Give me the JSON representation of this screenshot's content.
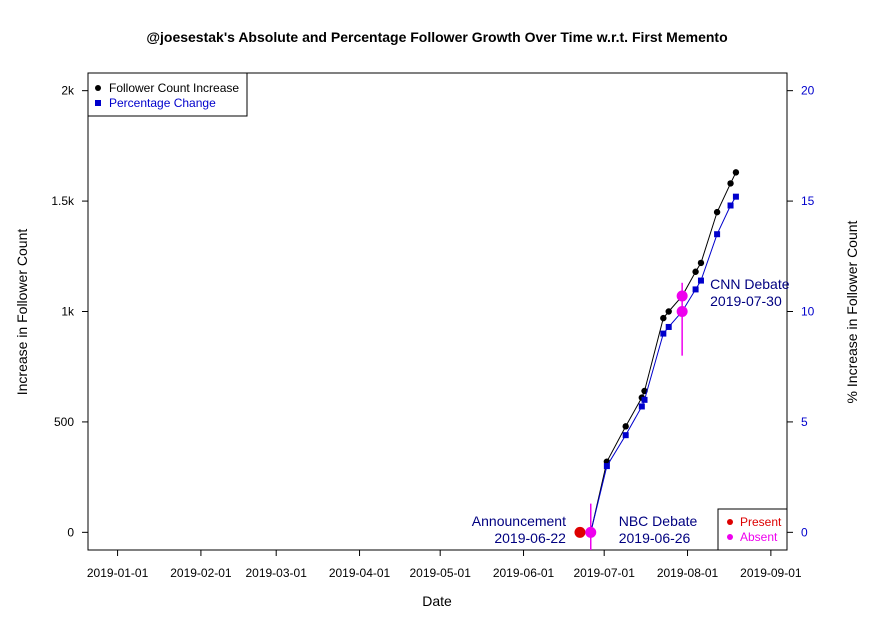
{
  "chart_data": {
    "type": "line",
    "title": "@joesestak's Absolute and Percentage Follower Growth Over Time w.r.t. First Memento",
    "xlabel": "Date",
    "ylabel": "Increase in Follower Count",
    "ylabel_right": "% Increase in Follower Count",
    "x_ticks": [
      "2019-01-01",
      "2019-02-01",
      "2019-03-01",
      "2019-04-01",
      "2019-05-01",
      "2019-06-01",
      "2019-07-01",
      "2019-08-01",
      "2019-09-01"
    ],
    "y_ticks": [
      {
        "value": 0,
        "label": "0"
      },
      {
        "value": 500,
        "label": "500"
      },
      {
        "value": 1000,
        "label": "1k"
      },
      {
        "value": 1500,
        "label": "1.5k"
      },
      {
        "value": 2000,
        "label": "2k"
      }
    ],
    "y_right_ticks": [
      {
        "value": 0,
        "label": "0"
      },
      {
        "value": 5,
        "label": "5"
      },
      {
        "value": 10,
        "label": "10"
      },
      {
        "value": 15,
        "label": "15"
      },
      {
        "value": 20,
        "label": "20"
      }
    ],
    "xlim": [
      "2018-12-21",
      "2019-09-07"
    ],
    "ylim": [
      -80,
      2080
    ],
    "ylim_right": [
      -0.8,
      20.8
    ],
    "series": [
      {
        "name": "Follower Count Increase",
        "axis": "left",
        "color": "#000000",
        "marker": "circle",
        "points": [
          {
            "x": "2019-06-22",
            "y": 0
          },
          {
            "x": "2019-06-26",
            "y": 0
          },
          {
            "x": "2019-07-02",
            "y": 320
          },
          {
            "x": "2019-07-09",
            "y": 480
          },
          {
            "x": "2019-07-15",
            "y": 610
          },
          {
            "x": "2019-07-16",
            "y": 640
          },
          {
            "x": "2019-07-23",
            "y": 970
          },
          {
            "x": "2019-07-25",
            "y": 1000
          },
          {
            "x": "2019-07-30",
            "y": 1070
          },
          {
            "x": "2019-08-04",
            "y": 1180
          },
          {
            "x": "2019-08-06",
            "y": 1220
          },
          {
            "x": "2019-08-12",
            "y": 1450
          },
          {
            "x": "2019-08-17",
            "y": 1580
          },
          {
            "x": "2019-08-19",
            "y": 1630
          }
        ]
      },
      {
        "name": "Percentage Change",
        "axis": "right",
        "color": "#0000cc",
        "marker": "square",
        "points": [
          {
            "x": "2019-06-22",
            "y": 0
          },
          {
            "x": "2019-06-26",
            "y": 0
          },
          {
            "x": "2019-07-02",
            "y": 3.0
          },
          {
            "x": "2019-07-09",
            "y": 4.4
          },
          {
            "x": "2019-07-15",
            "y": 5.7
          },
          {
            "x": "2019-07-16",
            "y": 6.0
          },
          {
            "x": "2019-07-23",
            "y": 9.0
          },
          {
            "x": "2019-07-25",
            "y": 9.3
          },
          {
            "x": "2019-07-30",
            "y": 10.0
          },
          {
            "x": "2019-08-04",
            "y": 11.0
          },
          {
            "x": "2019-08-06",
            "y": 11.4
          },
          {
            "x": "2019-08-12",
            "y": 13.5
          },
          {
            "x": "2019-08-17",
            "y": 14.8
          },
          {
            "x": "2019-08-19",
            "y": 15.2
          }
        ]
      }
    ],
    "status_points": [
      {
        "x": "2019-06-22",
        "y": 0,
        "status": "Present"
      },
      {
        "x": "2019-06-26",
        "y": 0,
        "status": "Absent"
      },
      {
        "x": "2019-07-30",
        "y": 1070,
        "status": "Absent"
      },
      {
        "x": "2019-07-30",
        "y": 1000,
        "status": "Absent"
      }
    ],
    "event_lines": [
      {
        "x": "2019-06-26",
        "y_from": -80,
        "y_to": 130
      },
      {
        "x": "2019-07-30",
        "y_from": 800,
        "y_to": 1130
      }
    ],
    "annotations": [
      {
        "id": "announcement",
        "lines": [
          "Announcement",
          "2019-06-22"
        ],
        "x": "2019-06-22",
        "side": "left"
      },
      {
        "id": "nbc",
        "lines": [
          "NBC Debate",
          "2019-06-26"
        ],
        "x": "2019-06-26",
        "side": "right"
      },
      {
        "id": "cnn",
        "lines": [
          "CNN Debate",
          "2019-07-30"
        ],
        "x": "2019-07-30",
        "side": "right"
      }
    ],
    "annotation_color": "#000080",
    "legend": {
      "placement": "top-left",
      "items": [
        {
          "label": "Follower Count Increase",
          "color": "#000000",
          "marker": "circle"
        },
        {
          "label": "Percentage Change",
          "color": "#0000cc",
          "marker": "square"
        }
      ]
    },
    "status_legend": {
      "placement": "bottom-right",
      "items": [
        {
          "label": "Present",
          "color": "#dd0000"
        },
        {
          "label": "Absent",
          "color": "#ee00ee"
        }
      ]
    },
    "grid": false
  }
}
